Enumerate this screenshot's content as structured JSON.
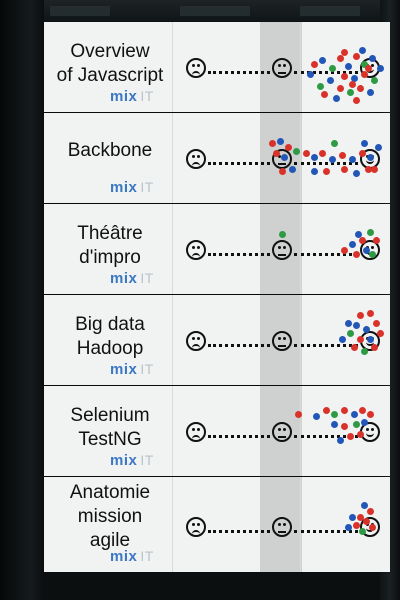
{
  "photo": {
    "subject": "Mix-IT session feedback board",
    "sessions": [
      {
        "title": "Overview of Javascript",
        "title_lines": [
          "Overview",
          "of Javascript"
        ],
        "brand": "mix",
        "brand_suffix": "IT"
      },
      {
        "title": "Backbone",
        "title_lines": [
          "Backbone"
        ],
        "brand": "mix",
        "brand_suffix": "IT"
      },
      {
        "title": "Théâtre d'impro",
        "title_lines": [
          "Théâtre",
          "d'impro"
        ],
        "brand": "mix",
        "brand_suffix": "IT"
      },
      {
        "title": "Big data Hadoop",
        "title_lines": [
          "Big data",
          "Hadoop"
        ],
        "brand": "mix",
        "brand_suffix": "IT"
      },
      {
        "title": "Selenium TestNG",
        "title_lines": [
          "Selenium",
          "TestNG"
        ],
        "brand": "mix",
        "brand_suffix": "IT"
      },
      {
        "title": "Anatomie mission agile",
        "title_lines": [
          "Anatomie",
          "mission",
          "agile"
        ],
        "brand": "mix",
        "brand_suffix": "IT"
      }
    ],
    "scale_icons": [
      "sad-face-icon",
      "neutral-face-icon",
      "happy-face-icon"
    ],
    "colors": {
      "brand_blue": "#3b78c4",
      "sticker_red": "#d9322b",
      "sticker_blue": "#2257b8",
      "sticker_green": "#2f9a44"
    }
  }
}
